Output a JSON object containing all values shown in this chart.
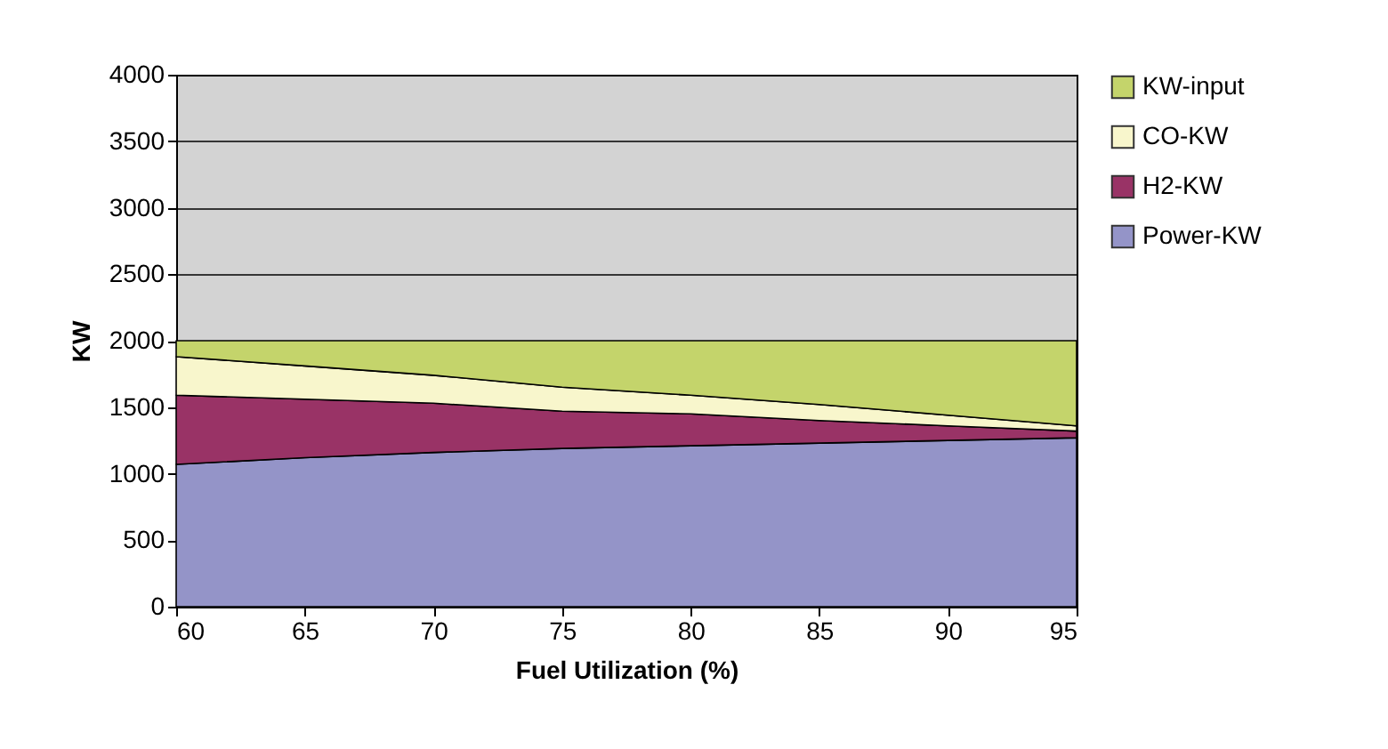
{
  "chart_data": {
    "type": "area",
    "xlabel": "Fuel Utilization (%)",
    "ylabel": "KW",
    "stacked": true,
    "grid": "y",
    "legend": "right",
    "x": [
      60,
      65,
      70,
      75,
      80,
      85,
      90,
      95
    ],
    "xlim": [
      60,
      95
    ],
    "xticks": [
      60,
      65,
      70,
      75,
      80,
      85,
      90,
      95
    ],
    "ylim": [
      0,
      4000
    ],
    "yticks": [
      0,
      500,
      1000,
      1500,
      2000,
      2500,
      3000,
      3500,
      4000
    ],
    "series": [
      {
        "name": "Power-KW",
        "color": "#9494c8",
        "values": [
          1070,
          1120,
          1160,
          1190,
          1210,
          1230,
          1250,
          1270
        ]
      },
      {
        "name": "H2-KW",
        "color": "#993366",
        "values": [
          520,
          440,
          370,
          280,
          240,
          170,
          110,
          50
        ]
      },
      {
        "name": "CO-KW",
        "color": "#f8f6cc",
        "values": [
          290,
          250,
          210,
          180,
          140,
          120,
          80,
          40
        ]
      },
      {
        "name": "KW-input",
        "color": "#c4d46b",
        "values": [
          120,
          190,
          260,
          350,
          410,
          480,
          560,
          640
        ]
      }
    ]
  }
}
